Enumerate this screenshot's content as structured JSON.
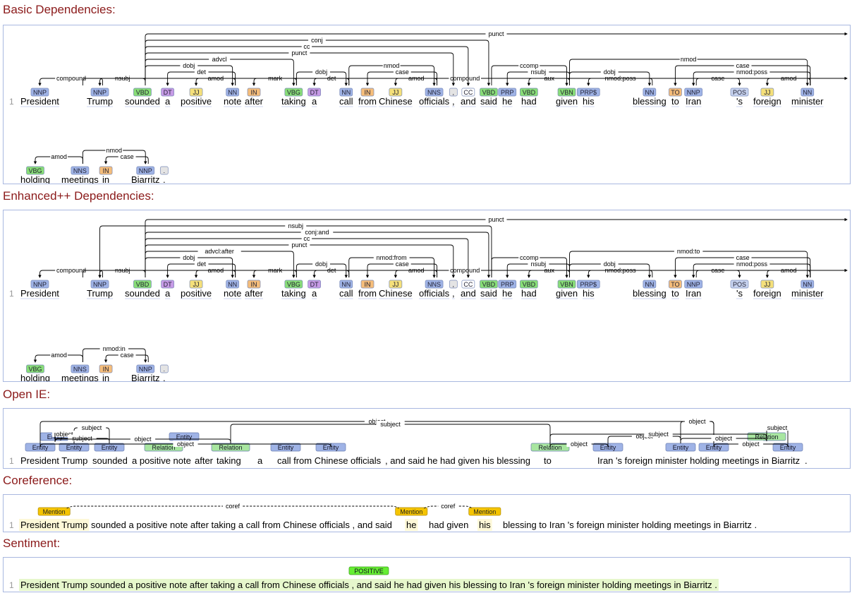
{
  "sections": {
    "basic": "Basic Dependencies:",
    "enhanced": "Enhanced++ Dependencies:",
    "openie": "Open IE:",
    "coref": "Coreference:",
    "sentiment": "Sentiment:"
  },
  "line_number": "1",
  "tokens": [
    {
      "w": "President",
      "t": "NNP"
    },
    {
      "w": "Trump",
      "t": "NNP"
    },
    {
      "w": "sounded",
      "t": "VBD"
    },
    {
      "w": "a",
      "t": "DT"
    },
    {
      "w": "positive",
      "t": "JJ"
    },
    {
      "w": "note",
      "t": "NN"
    },
    {
      "w": "after",
      "t": "IN"
    },
    {
      "w": "taking",
      "t": "VBG"
    },
    {
      "w": "a",
      "t": "DT"
    },
    {
      "w": "call",
      "t": "NN"
    },
    {
      "w": "from",
      "t": "IN"
    },
    {
      "w": "Chinese",
      "t": "JJ"
    },
    {
      "w": "officials",
      "t": "NNS"
    },
    {
      "w": ",",
      "t": ","
    },
    {
      "w": "and",
      "t": "CC"
    },
    {
      "w": "said",
      "t": "VBD"
    },
    {
      "w": "he",
      "t": "PRP"
    },
    {
      "w": "had",
      "t": "VBD"
    },
    {
      "w": "given",
      "t": "VBN"
    },
    {
      "w": "his",
      "t": "PRP$"
    },
    {
      "w": "blessing",
      "t": "NN"
    },
    {
      "w": "to",
      "t": "TO"
    },
    {
      "w": "Iran",
      "t": "NNP"
    },
    {
      "w": "'s",
      "t": "POS"
    },
    {
      "w": "foreign",
      "t": "JJ"
    },
    {
      "w": "minister",
      "t": "NN"
    },
    {
      "w": "holding",
      "t": "VBG"
    },
    {
      "w": "meetings",
      "t": "NNS"
    },
    {
      "w": "in",
      "t": "IN"
    },
    {
      "w": "Biarritz",
      "t": "NNP"
    },
    {
      "w": ".",
      "t": "."
    }
  ],
  "tag_colors": {
    "NNP": "#9fb3e6",
    "NN": "#9fb3e6",
    "NNS": "#9fb3e6",
    "PRP": "#9fb3e6",
    "PRP$": "#9fb3e6",
    "VBD": "#88dd77",
    "VBG": "#88dd77",
    "VBN": "#88dd77",
    "DT": "#c79be6",
    "JJ": "#f5e07a",
    "IN": "#f5bd7a",
    "TO": "#f5bd7a",
    "POS": "#c8d4f0",
    "CC": "#ffffff",
    ",": "#e4e4e4",
    ".": "#e4e4e4"
  },
  "basic_arcs": [
    {
      "g": 1,
      "d": 0,
      "l": "compound"
    },
    {
      "g": 2,
      "d": 1,
      "l": "nsubj"
    },
    {
      "g": 5,
      "d": 3,
      "l": "det"
    },
    {
      "g": 5,
      "d": 4,
      "l": "amod"
    },
    {
      "g": 2,
      "d": 5,
      "l": "dobj"
    },
    {
      "g": 7,
      "d": 6,
      "l": "mark"
    },
    {
      "g": 2,
      "d": 7,
      "l": "advcl"
    },
    {
      "g": 9,
      "d": 8,
      "l": "det"
    },
    {
      "g": 7,
      "d": 9,
      "l": "dobj"
    },
    {
      "g": 12,
      "d": 10,
      "l": "case"
    },
    {
      "g": 12,
      "d": 11,
      "l": "amod"
    },
    {
      "g": 9,
      "d": 12,
      "l": "nmod"
    },
    {
      "g": 2,
      "d": 13,
      "l": "punct"
    },
    {
      "g": 2,
      "d": 14,
      "l": "cc"
    },
    {
      "g": 2,
      "d": 15,
      "l": "conj"
    },
    {
      "g": 18,
      "d": 16,
      "l": "nsubj"
    },
    {
      "g": 18,
      "d": 17,
      "l": "aux"
    },
    {
      "g": 15,
      "d": 18,
      "l": "ccomp"
    },
    {
      "g": 20,
      "d": 19,
      "l": "nmod:poss"
    },
    {
      "g": 18,
      "d": 20,
      "l": "dobj"
    },
    {
      "g": 22,
      "d": 23,
      "l": "case"
    },
    {
      "g": 2,
      "d": 30,
      "l": "punct"
    },
    {
      "g": 18,
      "d": 25,
      "l": "nmod"
    },
    {
      "g": 25,
      "d": 21,
      "l": "case"
    },
    {
      "g": 25,
      "d": 22,
      "l": "nmod:poss"
    },
    {
      "g": 25,
      "d": 24,
      "l": "amod"
    },
    {
      "g": 27,
      "d": 25,
      "l": "compound"
    },
    {
      "g": 27,
      "d": 26,
      "l": "amod"
    },
    {
      "g": 29,
      "d": 28,
      "l": "case"
    },
    {
      "g": 27,
      "d": 29,
      "l": "nmod"
    }
  ],
  "enhanced_arcs": [
    {
      "g": 1,
      "d": 0,
      "l": "compound"
    },
    {
      "g": 2,
      "d": 1,
      "l": "nsubj"
    },
    {
      "g": 5,
      "d": 3,
      "l": "det"
    },
    {
      "g": 5,
      "d": 4,
      "l": "amod"
    },
    {
      "g": 2,
      "d": 5,
      "l": "dobj"
    },
    {
      "g": 7,
      "d": 6,
      "l": "mark"
    },
    {
      "g": 2,
      "d": 7,
      "l": "advcl:after"
    },
    {
      "g": 9,
      "d": 8,
      "l": "det"
    },
    {
      "g": 7,
      "d": 9,
      "l": "dobj"
    },
    {
      "g": 12,
      "d": 10,
      "l": "case"
    },
    {
      "g": 12,
      "d": 11,
      "l": "amod"
    },
    {
      "g": 9,
      "d": 12,
      "l": "nmod:from"
    },
    {
      "g": 2,
      "d": 13,
      "l": "punct"
    },
    {
      "g": 2,
      "d": 14,
      "l": "cc"
    },
    {
      "g": 2,
      "d": 15,
      "l": "conj:and"
    },
    {
      "g": 15,
      "d": 1,
      "l": "nsubj"
    },
    {
      "g": 18,
      "d": 16,
      "l": "nsubj"
    },
    {
      "g": 18,
      "d": 17,
      "l": "aux"
    },
    {
      "g": 15,
      "d": 18,
      "l": "ccomp"
    },
    {
      "g": 20,
      "d": 19,
      "l": "nmod:poss"
    },
    {
      "g": 18,
      "d": 20,
      "l": "dobj"
    },
    {
      "g": 22,
      "d": 23,
      "l": "case"
    },
    {
      "g": 2,
      "d": 30,
      "l": "punct"
    },
    {
      "g": 18,
      "d": 25,
      "l": "nmod:to"
    },
    {
      "g": 25,
      "d": 21,
      "l": "case"
    },
    {
      "g": 25,
      "d": 22,
      "l": "nmod:poss"
    },
    {
      "g": 25,
      "d": 24,
      "l": "amod"
    },
    {
      "g": 27,
      "d": 25,
      "l": "compound"
    },
    {
      "g": 27,
      "d": 26,
      "l": "amod"
    },
    {
      "g": 29,
      "d": 28,
      "l": "case"
    },
    {
      "g": 27,
      "d": 29,
      "l": "nmod:in"
    }
  ],
  "openie": {
    "spans": [
      "President Trump",
      "sounded",
      "a positive note",
      "after",
      "taking",
      "a",
      "call from Chinese officials",
      ", and said he had given his blessing",
      "to",
      "Iran 's foreign minister holding meetings in Biarritz",
      "."
    ],
    "tags": [
      {
        "l": "Entity",
        "kind": "entity"
      },
      {
        "l": "Entity",
        "kind": "entity"
      },
      {
        "l": "Entity",
        "kind": "entity"
      },
      {
        "l": "Relation",
        "kind": "relation"
      },
      {
        "l": "Entity",
        "kind": "entity"
      },
      {
        "l": "Entity",
        "kind": "entity"
      },
      {
        "l": "Relation",
        "kind": "relation"
      },
      {
        "l": "Entity",
        "kind": "entity"
      },
      {
        "l": "Entity",
        "kind": "entity"
      },
      {
        "l": "Relation",
        "kind": "relation"
      },
      {
        "l": "Entity",
        "kind": "entity"
      },
      {
        "l": "Entity",
        "kind": "entity"
      },
      {
        "l": "Entity",
        "kind": "entity"
      },
      {
        "l": "Relation",
        "kind": "relation"
      },
      {
        "l": "Entity",
        "kind": "entity"
      }
    ],
    "arc_labels": [
      "subject",
      "object",
      "subject",
      "object",
      "object",
      "subject",
      "object",
      "object",
      "object",
      "subject",
      "object",
      "subject",
      "object",
      "object"
    ]
  },
  "coref": {
    "spans": [
      "President Trump",
      "sounded a positive note after taking a call from Chinese officials , and said",
      "he",
      "had given",
      "his",
      "blessing to Iran 's foreign minister holding meetings in Biarritz ."
    ],
    "mention_label": "Mention",
    "link_label": "coref"
  },
  "sentiment": {
    "label": "POSITIVE",
    "text": "President Trump sounded a positive note after taking a call from Chinese officials , and said he had given his blessing to Iran 's foreign minister holding meetings in Biarritz ."
  },
  "colors": {
    "title": "#8b1a1a",
    "panel_border": "#a9b8e0",
    "entity": "#9fb3e6",
    "relation": "#a8e6a0",
    "mention": "#f5c400",
    "positive": "#66ee33",
    "sentiment_bg": "#e6f7cc",
    "mention_bg": "#fdf8d8"
  }
}
